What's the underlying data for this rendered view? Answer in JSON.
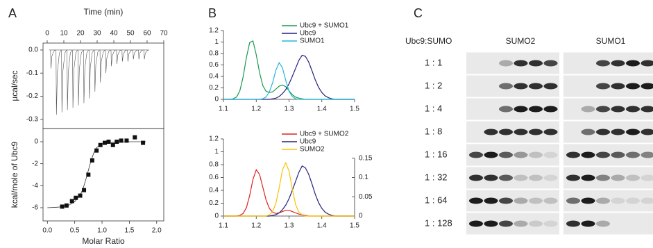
{
  "panel_labels": [
    "A",
    "B",
    "C"
  ],
  "chart_data": [
    {
      "type": "spikes",
      "xlabel": "Time (min)",
      "ylabel": "µcal/sec",
      "x": [
        2,
        5.3,
        8.6,
        11.9,
        15.2,
        18.5,
        21.8,
        25.1,
        28.4,
        31.7,
        35,
        38.3,
        41.6,
        44.9,
        48.2,
        51.5,
        54.8,
        58.1
      ],
      "values": [
        -0.08,
        -0.28,
        -0.27,
        -0.26,
        -0.25,
        -0.24,
        -0.23,
        -0.21,
        -0.18,
        -0.14,
        -0.1,
        -0.07,
        -0.06,
        -0.05,
        -0.05,
        -0.04,
        -0.04,
        -0.04
      ],
      "color": "#555555",
      "xlim": [
        -2.5,
        70
      ],
      "xticks": [
        0,
        10,
        20,
        30,
        40,
        50,
        60,
        70
      ],
      "ylim": [
        -0.34,
        0.03
      ],
      "yticks": [
        {
          "value": 0,
          "label": "0.0"
        },
        {
          "value": -0.1,
          "label": "-0.1"
        },
        {
          "value": -0.2,
          "label": "-0.2"
        },
        {
          "value": -0.3,
          "label": "-0.3"
        }
      ]
    },
    {
      "type": "scatter",
      "xlabel": "Molar Ratio",
      "ylabel": "kcal/mole of Ubc9",
      "x": [
        0.27,
        0.35,
        0.45,
        0.52,
        0.6,
        0.67,
        0.75,
        0.82,
        0.9,
        0.97,
        1.05,
        1.12,
        1.2,
        1.27,
        1.35,
        1.45,
        1.6,
        1.75
      ],
      "values": [
        -5.9,
        -5.8,
        -5.4,
        -5.1,
        -4.9,
        -4.4,
        -3.0,
        -1.7,
        -0.8,
        -0.3,
        -0.1,
        0.0,
        -0.3,
        0.0,
        0.1,
        0.1,
        0.4,
        -0.1
      ],
      "color": "#111111",
      "fit_x": [
        0.0,
        0.2,
        0.4,
        0.5,
        0.6,
        0.65,
        0.7,
        0.75,
        0.8,
        0.85,
        0.9,
        1.0,
        1.2,
        1.5,
        1.8
      ],
      "fit_values": [
        -6.0,
        -5.95,
        -5.75,
        -5.45,
        -4.85,
        -4.3,
        -3.5,
        -2.6,
        -1.7,
        -1.0,
        -0.55,
        -0.2,
        -0.05,
        0,
        0
      ],
      "xlim": [
        -0.08,
        2.13
      ],
      "xticks": [
        {
          "value": 0,
          "label": "0.0"
        },
        {
          "value": 0.5,
          "label": "0.5"
        },
        {
          "value": 1,
          "label": "1.0"
        },
        {
          "value": 1.5,
          "label": "1.5"
        },
        {
          "value": 2,
          "label": "2.0"
        }
      ],
      "ylim": [
        -7.2,
        1.2
      ],
      "yticks": [
        0,
        -2,
        -4,
        -6
      ]
    },
    {
      "type": "line",
      "x": [
        1.1,
        1.11,
        1.12,
        1.13,
        1.14,
        1.15,
        1.16,
        1.17,
        1.18,
        1.19,
        1.2,
        1.21,
        1.22,
        1.23,
        1.24,
        1.25,
        1.26,
        1.27,
        1.28,
        1.29,
        1.3,
        1.31,
        1.32,
        1.33,
        1.34,
        1.35,
        1.36,
        1.37,
        1.38,
        1.39,
        1.4,
        1.41,
        1.42,
        1.43,
        1.44,
        1.45,
        1.46,
        1.47,
        1.48,
        1.49,
        1.5
      ],
      "series": [
        {
          "name": "Ubc9 + SUMO1",
          "color": "#1a9a50",
          "values": [
            0,
            0,
            0,
            0.01,
            0.04,
            0.15,
            0.39,
            0.73,
            0.99,
            1.02,
            0.78,
            0.47,
            0.24,
            0.14,
            0.12,
            0.13,
            0.18,
            0.23,
            0.25,
            0.22,
            0.15,
            0.08,
            0.04,
            0.02,
            0.01,
            0,
            0,
            0,
            0,
            0,
            0,
            0,
            0,
            0,
            0,
            0,
            0,
            0,
            0,
            0,
            0
          ]
        },
        {
          "name": "Ubc9",
          "color": "#22227a",
          "values": [
            0,
            0,
            0,
            0,
            0,
            0,
            0,
            0,
            0,
            0,
            0,
            0,
            0,
            0,
            0,
            0.01,
            0.02,
            0.05,
            0.1,
            0.17,
            0.27,
            0.4,
            0.54,
            0.68,
            0.77,
            0.75,
            0.65,
            0.5,
            0.34,
            0.21,
            0.12,
            0.06,
            0.03,
            0.01,
            0,
            0,
            0,
            0,
            0,
            0,
            0
          ]
        },
        {
          "name": "SUMO1",
          "color": "#22b8d8",
          "values": [
            0,
            0,
            0,
            0,
            0,
            0,
            0,
            0,
            0,
            0,
            0,
            0,
            0.01,
            0.04,
            0.13,
            0.29,
            0.51,
            0.64,
            0.55,
            0.33,
            0.14,
            0.05,
            0.01,
            0,
            0,
            0,
            0,
            0,
            0,
            0,
            0,
            0,
            0,
            0,
            0,
            0,
            0,
            0,
            0,
            0,
            0
          ]
        }
      ],
      "xlim": [
        1.1,
        1.5
      ],
      "xticks": [
        1.1,
        1.2,
        1.3,
        1.4,
        1.5
      ],
      "ylim": [
        0,
        1.2
      ],
      "yticks": [
        0,
        0.2,
        0.4,
        0.6,
        0.8,
        1,
        1.2
      ],
      "legend": "upper right"
    },
    {
      "type": "line",
      "x": [
        1.1,
        1.11,
        1.12,
        1.13,
        1.14,
        1.15,
        1.16,
        1.17,
        1.18,
        1.19,
        1.2,
        1.21,
        1.22,
        1.23,
        1.24,
        1.25,
        1.26,
        1.27,
        1.28,
        1.29,
        1.3,
        1.31,
        1.32,
        1.33,
        1.34,
        1.35,
        1.36,
        1.37,
        1.38,
        1.39,
        1.4,
        1.41,
        1.42,
        1.43,
        1.44,
        1.45,
        1.46,
        1.47,
        1.48,
        1.49,
        1.5
      ],
      "series": [
        {
          "name": "Ubc9 + SUMO2",
          "color": "#e02020",
          "values": [
            0,
            0,
            0,
            0,
            0,
            0.01,
            0.04,
            0.13,
            0.32,
            0.57,
            0.72,
            0.65,
            0.45,
            0.25,
            0.12,
            0.06,
            0.04,
            0.05,
            0.07,
            0.09,
            0.09,
            0.07,
            0.05,
            0.03,
            0.02,
            0.01,
            0,
            0,
            0,
            0,
            0,
            0,
            0,
            0,
            0,
            0,
            0,
            0,
            0,
            0,
            0
          ]
        },
        {
          "name": "Ubc9",
          "color": "#22227a",
          "values": [
            0,
            0,
            0,
            0,
            0,
            0,
            0,
            0,
            0,
            0,
            0,
            0,
            0,
            0,
            0,
            0.01,
            0.02,
            0.05,
            0.1,
            0.17,
            0.27,
            0.4,
            0.54,
            0.68,
            0.78,
            0.75,
            0.65,
            0.5,
            0.34,
            0.21,
            0.12,
            0.06,
            0.03,
            0.01,
            0,
            0,
            0,
            0,
            0,
            0,
            0
          ]
        },
        {
          "name": "SUMO2",
          "color": "#f5c400",
          "values": [
            0,
            0,
            0,
            0,
            0,
            0,
            0,
            0,
            0,
            0,
            0,
            0,
            0,
            0,
            0.02,
            0.07,
            0.2,
            0.44,
            0.72,
            0.83,
            0.7,
            0.42,
            0.18,
            0.06,
            0.02,
            0,
            0,
            0,
            0,
            0,
            0,
            0,
            0,
            0,
            0,
            0,
            0,
            0,
            0,
            0,
            0
          ]
        }
      ],
      "xlim": [
        1.1,
        1.5
      ],
      "xticks": [
        1.1,
        1.2,
        1.3,
        1.4,
        1.5
      ],
      "ylim": [
        0,
        1.2
      ],
      "yticks": [
        0,
        0.2,
        0.4,
        0.6,
        0.8,
        1,
        1.2
      ],
      "y2lim": [
        0,
        0.2
      ],
      "y2ticks": [
        0,
        0.05,
        0.1,
        0.15
      ],
      "legend": "upper right"
    }
  ],
  "blot": {
    "column_header": "Ubc9:SUMO",
    "groups": [
      "SUMO2",
      "SUMO1"
    ],
    "rows": [
      "1 : 1",
      "1 : 2",
      "1 : 4",
      "1 : 8",
      "1 : 16",
      "1 : 32",
      "1 : 64",
      "1 : 128"
    ]
  }
}
